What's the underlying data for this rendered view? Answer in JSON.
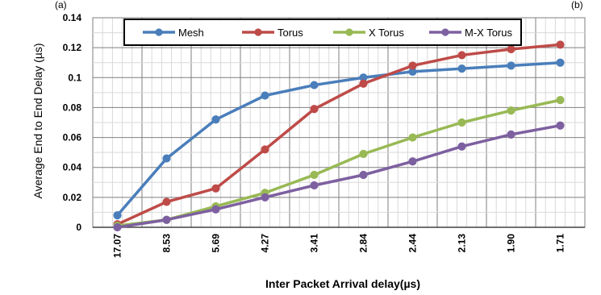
{
  "chart_data": {
    "type": "line",
    "title": "",
    "xlabel": "Inter Packet Arrival delay(µs)",
    "ylabel": "Average End to End Delay (µs)",
    "categories": [
      "17.07",
      "8.53",
      "5.69",
      "4.27",
      "3.41",
      "2.84",
      "2.44",
      "2.13",
      "1.90",
      "1.71"
    ],
    "ylim": [
      0,
      0.14
    ],
    "yticks": [
      "0",
      "0.02",
      "0.04",
      "0.06",
      "0.08",
      "0.1",
      "0.12",
      "0.14"
    ],
    "grid": true,
    "legend_position": "top",
    "series": [
      {
        "name": "Mesh",
        "color": "#4a7ebb",
        "values": [
          0.008,
          0.046,
          0.072,
          0.088,
          0.095,
          0.1,
          0.104,
          0.106,
          0.108,
          0.11
        ]
      },
      {
        "name": "Torus",
        "color": "#be4b48",
        "values": [
          0.002,
          0.017,
          0.026,
          0.052,
          0.079,
          0.096,
          0.108,
          0.115,
          0.119,
          0.122
        ]
      },
      {
        "name": "X Torus",
        "color": "#98b954",
        "values": [
          0.001,
          0.005,
          0.014,
          0.023,
          0.035,
          0.049,
          0.06,
          0.07,
          0.078,
          0.085
        ]
      },
      {
        "name": "M-X Torus",
        "color": "#7d60a0",
        "values": [
          0.0,
          0.005,
          0.012,
          0.02,
          0.028,
          0.035,
          0.044,
          0.054,
          0.062,
          0.068
        ]
      }
    ]
  },
  "corner_labels": {
    "left": "(a)",
    "right": "(b)"
  }
}
